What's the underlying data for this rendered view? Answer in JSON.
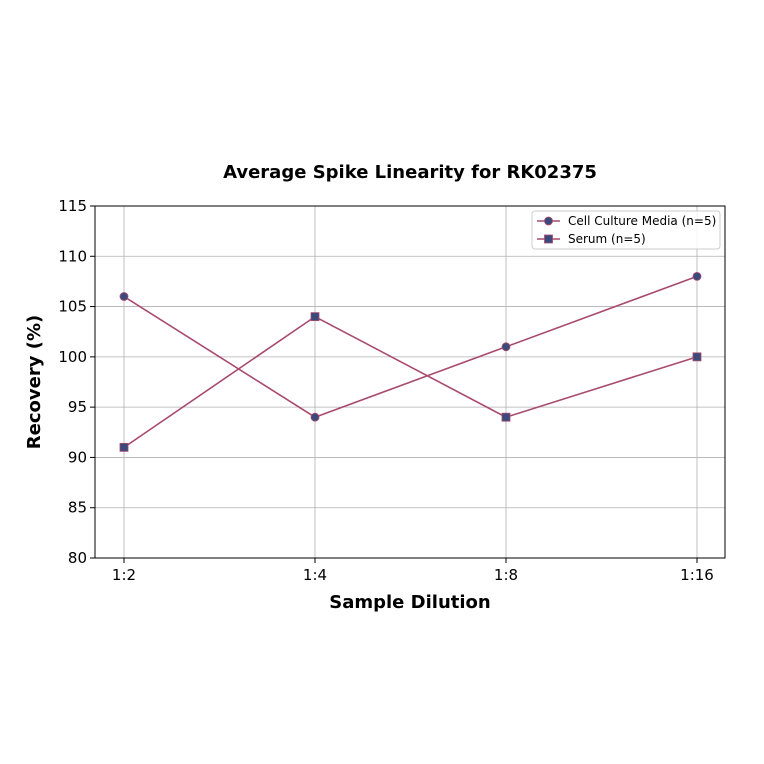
{
  "chart_data": {
    "type": "line",
    "title": "Average Spike Linearity for RK02375",
    "xlabel": "Sample Dilution",
    "ylabel": "Recovery (%)",
    "categories": [
      "1:2",
      "1:4",
      "1:8",
      "1:16"
    ],
    "ylim": [
      80,
      115
    ],
    "yticks": [
      80,
      85,
      90,
      95,
      100,
      105,
      110,
      115
    ],
    "grid": true,
    "legend_position": "top-right",
    "line_color": "#a84a6e",
    "marker_face_color": "#3b4a7a",
    "series": [
      {
        "name": "Cell Culture Media (n=5)",
        "marker": "circle",
        "values": [
          106,
          94,
          101,
          108
        ]
      },
      {
        "name": "Serum (n=5)",
        "marker": "square",
        "values": [
          91,
          104,
          94,
          100
        ]
      }
    ]
  }
}
